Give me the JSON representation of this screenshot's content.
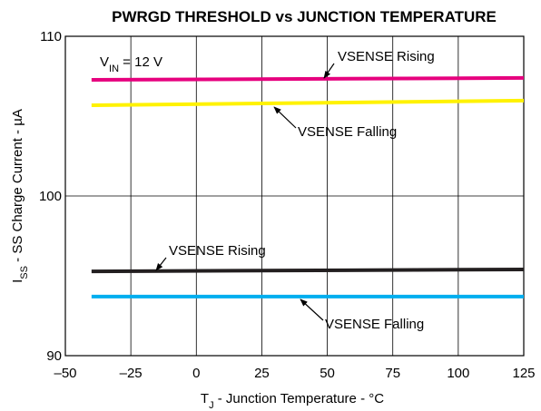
{
  "chart_data": {
    "type": "line",
    "title": "PWRGD THRESHOLD vs JUNCTION TEMPERATURE",
    "xlabel": {
      "main": "T",
      "sub": "J",
      "rest": " - Junction Temperature - °C"
    },
    "ylabel": {
      "main": "I",
      "sub": "SS",
      "rest": " - SS Charge Current - µA"
    },
    "annotation": {
      "main": "V",
      "sub": "IN",
      "rest": " = 12 V"
    },
    "x": [
      -40,
      125
    ],
    "series": [
      {
        "name": "VSENSE Rising",
        "color": "#e6007e",
        "values": [
          107.27,
          107.39
        ]
      },
      {
        "name": "VSENSE Falling",
        "color": "#fff200",
        "values": [
          105.68,
          105.97
        ]
      },
      {
        "name": "VSENSE Rising",
        "color": "#231f20",
        "values": [
          95.28,
          95.4
        ]
      },
      {
        "name": "VSENSE Falling",
        "color": "#00aeef",
        "values": [
          93.7,
          93.7
        ]
      }
    ],
    "xlim": [
      -50,
      125
    ],
    "ylim": [
      90,
      110
    ],
    "xticks": [
      {
        "value": -50,
        "label": "–50"
      },
      {
        "value": -25,
        "label": "–25"
      },
      0,
      25,
      50,
      75,
      100,
      125
    ],
    "yticks": [
      90,
      100,
      110
    ],
    "grid": true
  }
}
